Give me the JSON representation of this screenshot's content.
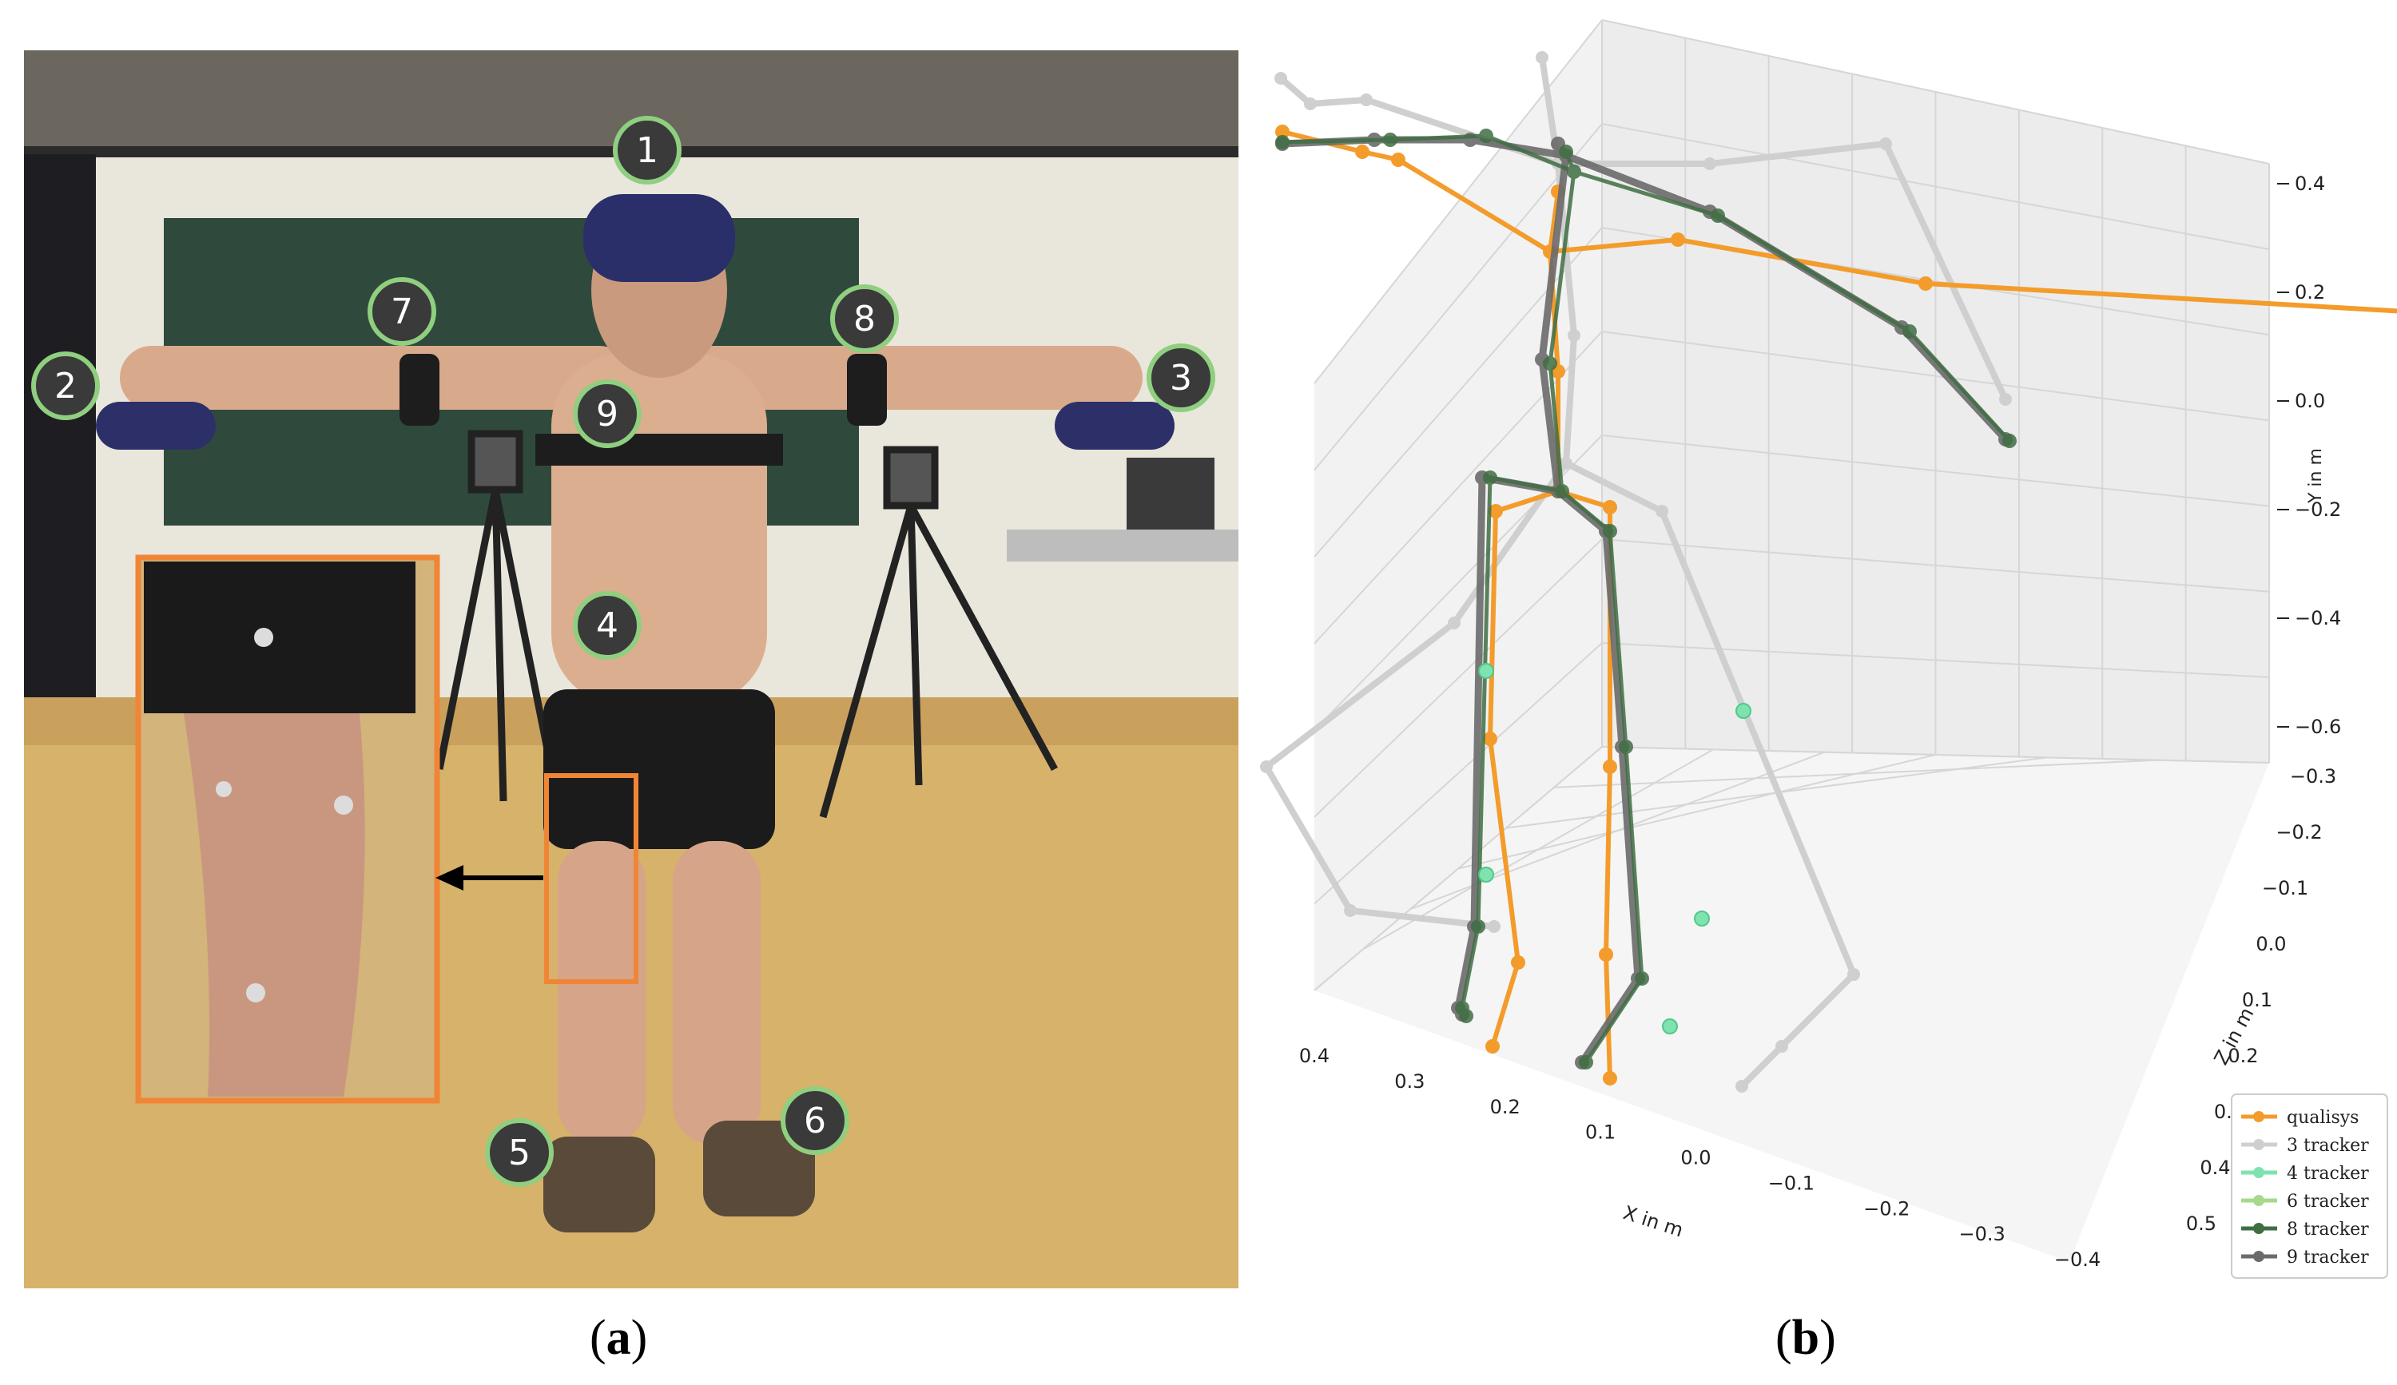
{
  "panel_a": {
    "caption_letter": "a",
    "markers": [
      "1",
      "2",
      "3",
      "4",
      "5",
      "6",
      "7",
      "8",
      "9"
    ],
    "colors": {
      "marker_fill": "#3a3a3a",
      "marker_ring": "#8fcf7f",
      "inset_border": "#f08536",
      "arrow": "#000000"
    }
  },
  "panel_b": {
    "caption_letter": "b",
    "xlabel": "X in m",
    "ylabel": "Y in m",
    "zlabel": "Z in m",
    "x_ticks": [
      "0.4",
      "0.3",
      "0.2",
      "0.1",
      "0.0",
      "−0.1",
      "−0.2",
      "−0.3",
      "−0.4"
    ],
    "z_ticks": [
      "−0.3",
      "−0.2",
      "−0.1",
      "0.0",
      "0.1",
      "0.2",
      "0.3",
      "0.4",
      "0.5"
    ],
    "y_ticks": [
      "0.4",
      "0.2",
      "0.0",
      "−0.2",
      "−0.4",
      "−0.6"
    ],
    "legend": [
      {
        "label": "qualisys",
        "color": "#f39c2b"
      },
      {
        "label": "3 tracker",
        "color": "#cfcfcf"
      },
      {
        "label": "4 tracker",
        "color": "#7fe3b0"
      },
      {
        "label": "6 tracker",
        "color": "#a6d98a"
      },
      {
        "label": "8 tracker",
        "color": "#3f6e43"
      },
      {
        "label": "9 tracker",
        "color": "#6b6b6b"
      }
    ]
  }
}
